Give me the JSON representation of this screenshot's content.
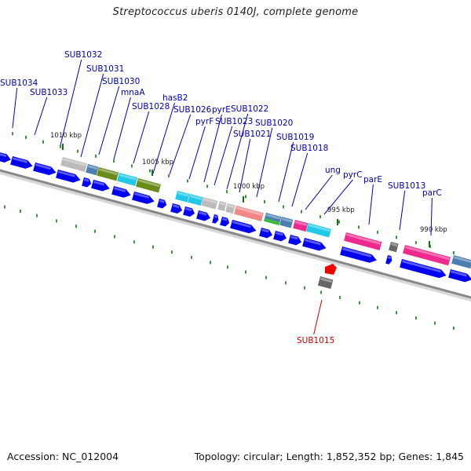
{
  "title": "Streptococcus uberis 0140J, complete genome",
  "accession": "Accession: NC_012004",
  "summary": "Topology: circular; Length: 1,852,352 bp; Genes: 1,845",
  "colors": {
    "cds_blue": "#0000ee",
    "label_blue": "#0000aa",
    "label_red": "#cc0000",
    "tick_green": "#117711",
    "backbone": "#888888",
    "gray": "#bbbbbb",
    "steelblue": "#4a7fb0",
    "olive": "#6a8a1a",
    "cyan": "#22c8e8",
    "pink": "#ee2a8e",
    "salmon": "#f08888",
    "green": "#33bb33",
    "darkgray": "#666666",
    "red": "#ee0000"
  },
  "scale_labels": [
    "1010 kbp",
    "1005 kbp",
    "1000 kbp",
    "995 kbp",
    "990 kbp"
  ],
  "gene_labels": [
    "SUB1034",
    "SUB1033",
    "SUB1032",
    "SUB1031",
    "SUB1030",
    "mnaA",
    "SUB1028",
    "hasB2",
    "SUB1026",
    "pyrF",
    "pyrE",
    "SUB1023",
    "SUB1022",
    "SUB1021",
    "SUB1020",
    "SUB1019",
    "SUB1018",
    "ung",
    "pyrC",
    "parE",
    "SUB1013",
    "parC",
    "SUB1015"
  ]
}
